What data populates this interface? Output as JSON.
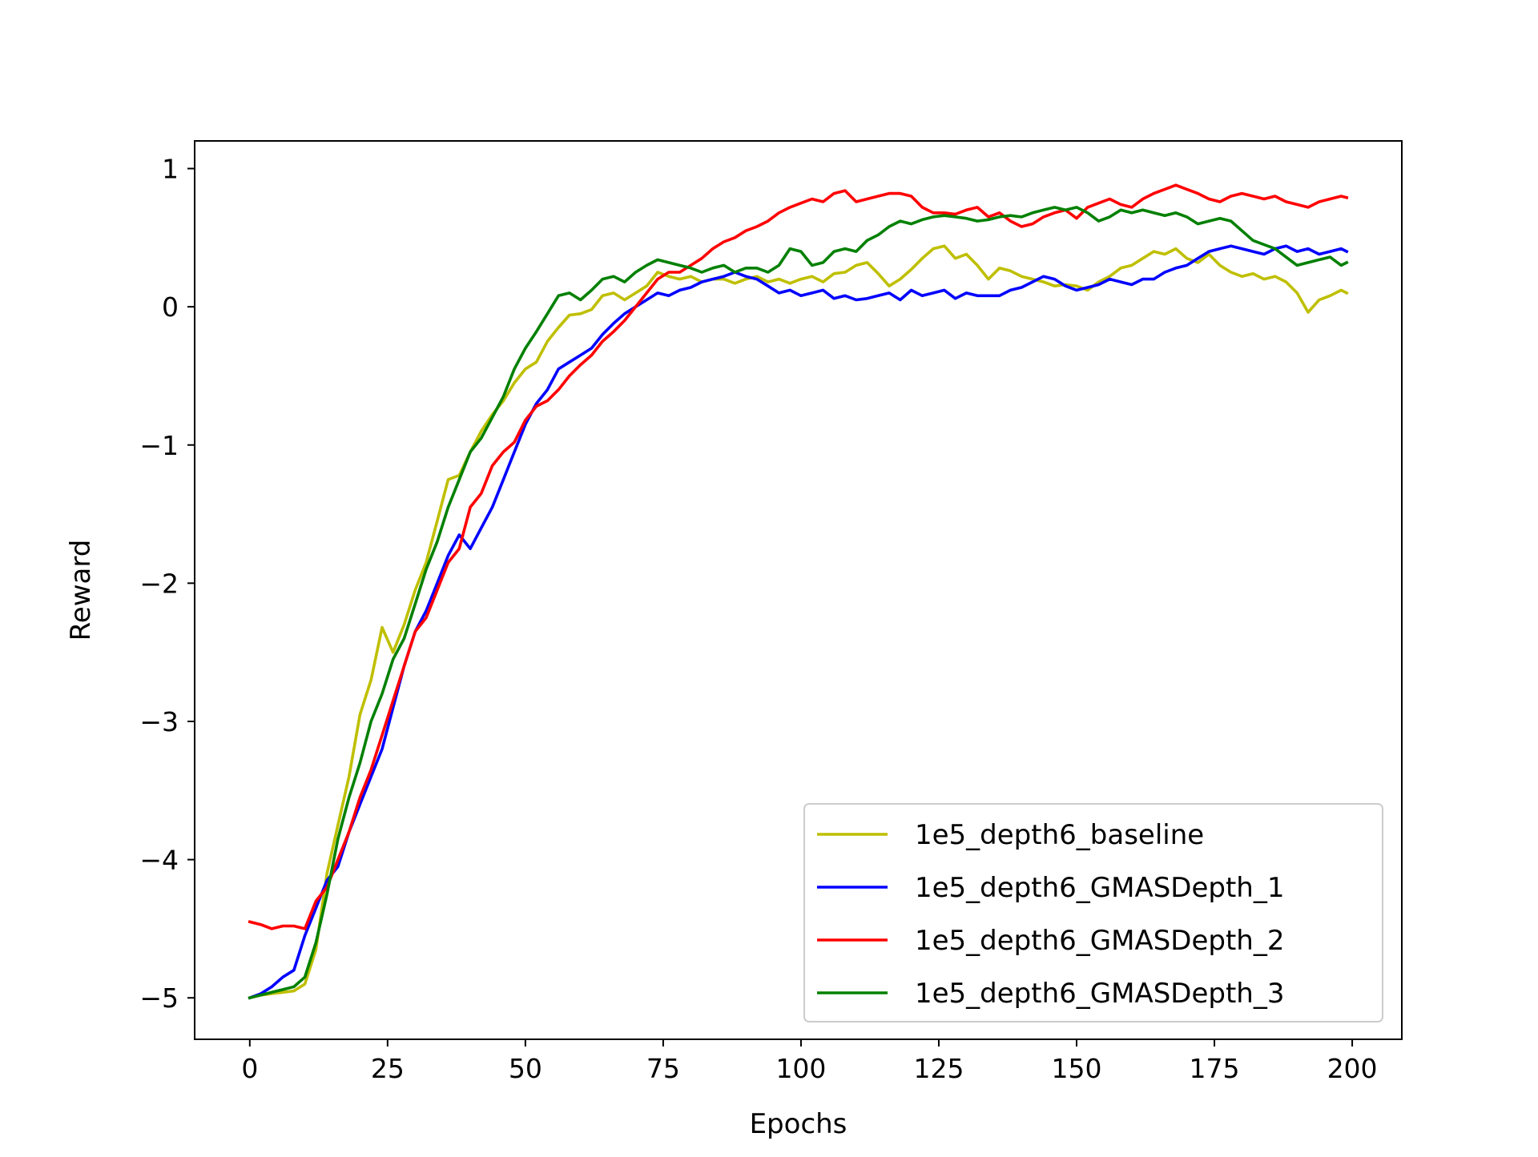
{
  "chart_data": {
    "type": "line",
    "title": "",
    "xlabel": "Epochs",
    "ylabel": "Reward",
    "xlim": [
      -10,
      209
    ],
    "ylim": [
      -5.3,
      1.2
    ],
    "xticks": [
      0,
      25,
      50,
      75,
      100,
      125,
      150,
      175,
      200
    ],
    "yticks": [
      1,
      0,
      -1,
      -2,
      -3,
      -4,
      -5
    ],
    "xtick_labels": [
      "0",
      "25",
      "50",
      "75",
      "100",
      "125",
      "150",
      "175",
      "200"
    ],
    "ytick_labels": [
      "1",
      "0",
      "−1",
      "−2",
      "−3",
      "−4",
      "−5"
    ],
    "grid": false,
    "legend_position": "lower-right",
    "series": [
      {
        "name": "1e5_depth6_baseline",
        "color": "#bfbf00",
        "x": [
          0,
          2,
          4,
          6,
          8,
          10,
          12,
          14,
          16,
          18,
          20,
          22,
          24,
          26,
          28,
          30,
          32,
          34,
          36,
          38,
          40,
          42,
          44,
          46,
          48,
          50,
          52,
          54,
          56,
          58,
          60,
          62,
          64,
          66,
          68,
          70,
          72,
          74,
          76,
          78,
          80,
          82,
          84,
          86,
          88,
          90,
          92,
          94,
          96,
          98,
          100,
          102,
          104,
          106,
          108,
          110,
          112,
          114,
          116,
          118,
          120,
          122,
          124,
          126,
          128,
          130,
          132,
          134,
          136,
          138,
          140,
          142,
          144,
          146,
          148,
          150,
          152,
          154,
          156,
          158,
          160,
          162,
          164,
          166,
          168,
          170,
          172,
          174,
          176,
          178,
          180,
          182,
          184,
          186,
          188,
          190,
          192,
          194,
          196,
          198,
          199
        ],
        "y": [
          -5.0,
          -4.98,
          -4.97,
          -4.96,
          -4.95,
          -4.9,
          -4.65,
          -4.1,
          -3.75,
          -3.4,
          -2.95,
          -2.7,
          -2.32,
          -2.5,
          -2.3,
          -2.05,
          -1.85,
          -1.55,
          -1.25,
          -1.22,
          -1.05,
          -0.9,
          -0.78,
          -0.68,
          -0.55,
          -0.45,
          -0.4,
          -0.25,
          -0.15,
          -0.06,
          -0.05,
          -0.02,
          0.08,
          0.1,
          0.05,
          0.1,
          0.15,
          0.25,
          0.22,
          0.2,
          0.22,
          0.18,
          0.2,
          0.2,
          0.17,
          0.2,
          0.22,
          0.18,
          0.2,
          0.17,
          0.2,
          0.22,
          0.18,
          0.24,
          0.25,
          0.3,
          0.32,
          0.24,
          0.15,
          0.2,
          0.27,
          0.35,
          0.42,
          0.44,
          0.35,
          0.38,
          0.3,
          0.2,
          0.28,
          0.26,
          0.22,
          0.2,
          0.18,
          0.15,
          0.16,
          0.15,
          0.12,
          0.18,
          0.22,
          0.28,
          0.3,
          0.35,
          0.4,
          0.38,
          0.42,
          0.35,
          0.32,
          0.38,
          0.3,
          0.25,
          0.22,
          0.24,
          0.2,
          0.22,
          0.18,
          0.1,
          -0.04,
          0.05,
          0.08,
          0.12,
          0.1
        ]
      },
      {
        "name": "1e5_depth6_GMASDepth_1",
        "color": "#0000ff",
        "x": [
          0,
          2,
          4,
          6,
          8,
          10,
          12,
          14,
          16,
          18,
          20,
          22,
          24,
          26,
          28,
          30,
          32,
          34,
          36,
          38,
          40,
          42,
          44,
          46,
          48,
          50,
          52,
          54,
          56,
          58,
          60,
          62,
          64,
          66,
          68,
          70,
          72,
          74,
          76,
          78,
          80,
          82,
          84,
          86,
          88,
          90,
          92,
          94,
          96,
          98,
          100,
          102,
          104,
          106,
          108,
          110,
          112,
          114,
          116,
          118,
          120,
          122,
          124,
          126,
          128,
          130,
          132,
          134,
          136,
          138,
          140,
          142,
          144,
          146,
          148,
          150,
          152,
          154,
          156,
          158,
          160,
          162,
          164,
          166,
          168,
          170,
          172,
          174,
          176,
          178,
          180,
          182,
          184,
          186,
          188,
          190,
          192,
          194,
          196,
          198,
          199
        ],
        "y": [
          -5.0,
          -4.97,
          -4.92,
          -4.85,
          -4.8,
          -4.55,
          -4.35,
          -4.15,
          -4.05,
          -3.8,
          -3.6,
          -3.4,
          -3.2,
          -2.9,
          -2.6,
          -2.35,
          -2.2,
          -2.0,
          -1.8,
          -1.65,
          -1.75,
          -1.6,
          -1.45,
          -1.25,
          -1.05,
          -0.85,
          -0.7,
          -0.6,
          -0.45,
          -0.4,
          -0.35,
          -0.3,
          -0.2,
          -0.12,
          -0.05,
          0.0,
          0.05,
          0.1,
          0.08,
          0.12,
          0.14,
          0.18,
          0.2,
          0.22,
          0.25,
          0.22,
          0.2,
          0.15,
          0.1,
          0.12,
          0.08,
          0.1,
          0.12,
          0.06,
          0.08,
          0.05,
          0.06,
          0.08,
          0.1,
          0.05,
          0.12,
          0.08,
          0.1,
          0.12,
          0.06,
          0.1,
          0.08,
          0.08,
          0.08,
          0.12,
          0.14,
          0.18,
          0.22,
          0.2,
          0.15,
          0.12,
          0.14,
          0.16,
          0.2,
          0.18,
          0.16,
          0.2,
          0.2,
          0.25,
          0.28,
          0.3,
          0.35,
          0.4,
          0.42,
          0.44,
          0.42,
          0.4,
          0.38,
          0.42,
          0.44,
          0.4,
          0.42,
          0.38,
          0.4,
          0.42,
          0.4
        ]
      },
      {
        "name": "1e5_depth6_GMASDepth_2",
        "color": "#ff0000",
        "x": [
          0,
          2,
          4,
          6,
          8,
          10,
          12,
          14,
          16,
          18,
          20,
          22,
          24,
          26,
          28,
          30,
          32,
          34,
          36,
          38,
          40,
          42,
          44,
          46,
          48,
          50,
          52,
          54,
          56,
          58,
          60,
          62,
          64,
          66,
          68,
          70,
          72,
          74,
          76,
          78,
          80,
          82,
          84,
          86,
          88,
          90,
          92,
          94,
          96,
          98,
          100,
          102,
          104,
          106,
          108,
          110,
          112,
          114,
          116,
          118,
          120,
          122,
          124,
          126,
          128,
          130,
          132,
          134,
          136,
          138,
          140,
          142,
          144,
          146,
          148,
          150,
          152,
          154,
          156,
          158,
          160,
          162,
          164,
          166,
          168,
          170,
          172,
          174,
          176,
          178,
          180,
          182,
          184,
          186,
          188,
          190,
          192,
          194,
          196,
          198,
          199
        ],
        "y": [
          -4.45,
          -4.47,
          -4.5,
          -4.48,
          -4.48,
          -4.5,
          -4.3,
          -4.2,
          -4.0,
          -3.8,
          -3.55,
          -3.35,
          -3.1,
          -2.85,
          -2.6,
          -2.35,
          -2.25,
          -2.05,
          -1.85,
          -1.75,
          -1.45,
          -1.35,
          -1.15,
          -1.05,
          -0.98,
          -0.82,
          -0.72,
          -0.68,
          -0.6,
          -0.5,
          -0.42,
          -0.35,
          -0.25,
          -0.18,
          -0.1,
          0.0,
          0.1,
          0.2,
          0.25,
          0.25,
          0.3,
          0.35,
          0.42,
          0.47,
          0.5,
          0.55,
          0.58,
          0.62,
          0.68,
          0.72,
          0.75,
          0.78,
          0.76,
          0.82,
          0.84,
          0.76,
          0.78,
          0.8,
          0.82,
          0.82,
          0.8,
          0.72,
          0.68,
          0.68,
          0.67,
          0.7,
          0.72,
          0.65,
          0.68,
          0.62,
          0.58,
          0.6,
          0.65,
          0.68,
          0.7,
          0.64,
          0.72,
          0.75,
          0.78,
          0.74,
          0.72,
          0.78,
          0.82,
          0.85,
          0.88,
          0.85,
          0.82,
          0.78,
          0.76,
          0.8,
          0.82,
          0.8,
          0.78,
          0.8,
          0.76,
          0.74,
          0.72,
          0.76,
          0.78,
          0.8,
          0.79
        ]
      },
      {
        "name": "1e5_depth6_GMASDepth_3",
        "color": "#008000",
        "x": [
          0,
          2,
          4,
          6,
          8,
          10,
          12,
          14,
          16,
          18,
          20,
          22,
          24,
          26,
          28,
          30,
          32,
          34,
          36,
          38,
          40,
          42,
          44,
          46,
          48,
          50,
          52,
          54,
          56,
          58,
          60,
          62,
          64,
          66,
          68,
          70,
          72,
          74,
          76,
          78,
          80,
          82,
          84,
          86,
          88,
          90,
          92,
          94,
          96,
          98,
          100,
          102,
          104,
          106,
          108,
          110,
          112,
          114,
          116,
          118,
          120,
          122,
          124,
          126,
          128,
          130,
          132,
          134,
          136,
          138,
          140,
          142,
          144,
          146,
          148,
          150,
          152,
          154,
          156,
          158,
          160,
          162,
          164,
          166,
          168,
          170,
          172,
          174,
          176,
          178,
          180,
          182,
          184,
          186,
          188,
          190,
          192,
          194,
          196,
          198,
          199
        ],
        "y": [
          -5.0,
          -4.98,
          -4.96,
          -4.94,
          -4.92,
          -4.85,
          -4.6,
          -4.25,
          -3.85,
          -3.55,
          -3.3,
          -3.0,
          -2.8,
          -2.55,
          -2.4,
          -2.15,
          -1.9,
          -1.7,
          -1.45,
          -1.25,
          -1.05,
          -0.95,
          -0.8,
          -0.65,
          -0.45,
          -0.3,
          -0.18,
          -0.05,
          0.08,
          0.1,
          0.05,
          0.12,
          0.2,
          0.22,
          0.18,
          0.25,
          0.3,
          0.34,
          0.32,
          0.3,
          0.28,
          0.25,
          0.28,
          0.3,
          0.25,
          0.28,
          0.28,
          0.25,
          0.3,
          0.42,
          0.4,
          0.3,
          0.32,
          0.4,
          0.42,
          0.4,
          0.48,
          0.52,
          0.58,
          0.62,
          0.6,
          0.63,
          0.65,
          0.66,
          0.65,
          0.64,
          0.62,
          0.63,
          0.65,
          0.66,
          0.65,
          0.68,
          0.7,
          0.72,
          0.7,
          0.72,
          0.68,
          0.62,
          0.65,
          0.7,
          0.68,
          0.7,
          0.68,
          0.66,
          0.68,
          0.65,
          0.6,
          0.62,
          0.64,
          0.62,
          0.55,
          0.48,
          0.45,
          0.42,
          0.36,
          0.3,
          0.32,
          0.34,
          0.36,
          0.3,
          0.32
        ]
      }
    ]
  }
}
